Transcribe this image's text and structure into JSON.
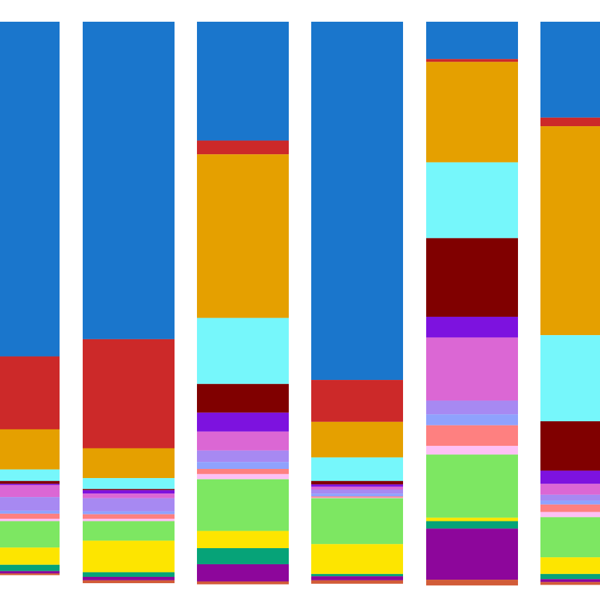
{
  "chart_data": {
    "type": "bar",
    "stacked": true,
    "normalized": true,
    "cropped": true,
    "categories": [
      "",
      "",
      "",
      "",
      "",
      ""
    ],
    "xlabel": "",
    "ylabel": "",
    "ylim": [
      0,
      100
    ],
    "legend": "none",
    "grid": false,
    "series": [
      {
        "color": "#1a76cc",
        "values": [
          58.3,
          55.3,
          20.7,
          62.4,
          6.5,
          16.7
        ]
      },
      {
        "color": "#cc2929",
        "values": [
          12.7,
          19.0,
          2.4,
          7.3,
          0.5,
          1.5
        ]
      },
      {
        "color": "#e5a000",
        "values": [
          7.0,
          5.2,
          28.5,
          6.2,
          17.5,
          36.4
        ]
      },
      {
        "color": "#76f7fb",
        "values": [
          2.0,
          1.9,
          11.5,
          4.1,
          13.2,
          15.0
        ]
      },
      {
        "color": "#800000",
        "values": [
          0.5,
          0.2,
          5.0,
          0.6,
          13.7,
          8.6
        ]
      },
      {
        "color": "#7d12df",
        "values": [
          0.2,
          0.6,
          3.3,
          0.4,
          3.6,
          2.3
        ]
      },
      {
        "color": "#db67d4",
        "values": [
          2.1,
          0.8,
          3.3,
          0.5,
          11.0,
          1.9
        ]
      },
      {
        "color": "#a789f2",
        "values": [
          2.4,
          2.3,
          2.0,
          0.7,
          2.4,
          1.0
        ]
      },
      {
        "color": "#8fa2fd",
        "values": [
          0.5,
          0.5,
          1.2,
          0.5,
          1.9,
          0.7
        ]
      },
      {
        "color": "#fe8080",
        "values": [
          0.9,
          0.8,
          0.9,
          0.2,
          3.6,
          1.3
        ]
      },
      {
        "color": "#fdc0f5",
        "values": [
          0.4,
          0.4,
          0.9,
          0.1,
          1.5,
          0.9
        ]
      },
      {
        "color": "#7de762",
        "values": [
          4.6,
          3.4,
          9.0,
          8.0,
          11.0,
          7.0
        ]
      },
      {
        "color": "#fde500",
        "values": [
          3.0,
          5.5,
          3.0,
          5.2,
          0.6,
          2.9
        ]
      },
      {
        "color": "#06a378",
        "values": [
          1.1,
          0.8,
          2.8,
          0.4,
          1.3,
          0.9
        ]
      },
      {
        "color": "#8d069b",
        "values": [
          0.4,
          0.6,
          3.0,
          0.7,
          8.9,
          0.5
        ]
      },
      {
        "color": "#d25c38",
        "values": [
          0.3,
          0.5,
          0.5,
          0.6,
          1.0,
          0.5
        ]
      }
    ]
  }
}
